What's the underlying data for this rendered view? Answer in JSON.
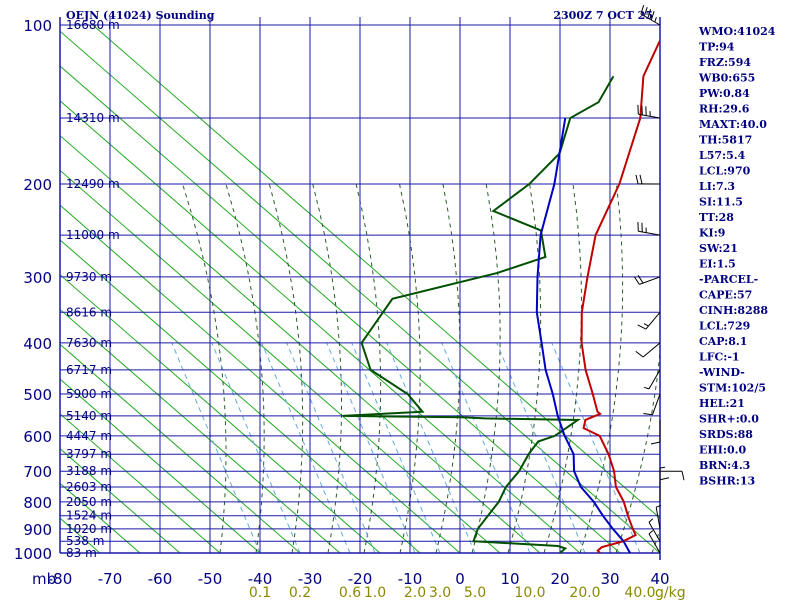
{
  "chart_data": {
    "type": "line",
    "subtype": "skew-t log-p sounding",
    "title": "OEJN (41024) Sounding",
    "valid_time": "2300Z  7 OCT 25",
    "pressure_axis": {
      "unit_label": "mb",
      "ticks": [
        "100",
        "200",
        "300",
        "400",
        "500",
        "600",
        "700",
        "800",
        "900",
        "1000"
      ],
      "range": [
        100,
        1000
      ],
      "scale": "log"
    },
    "temperature_axis": {
      "ticks": [
        "-80",
        "-70",
        "-60",
        "-50",
        "-40",
        "-30",
        "-20",
        "-10",
        "0",
        "10",
        "20",
        "30",
        "40"
      ],
      "range": [
        -80,
        40
      ],
      "skewed": true
    },
    "mixing_ratio_axis": {
      "unit_label": "g/kg",
      "ticks": [
        {
          "label": "0.1",
          "x_at_1000mb": -40
        },
        {
          "label": "0.2",
          "x_at_1000mb": -32
        },
        {
          "label": "0.6",
          "x_at_1000mb": -22
        },
        {
          "label": "1.0",
          "x_at_1000mb": -17
        },
        {
          "label": "2.0",
          "x_at_1000mb": -9
        },
        {
          "label": "3.0",
          "x_at_1000mb": -4
        },
        {
          "label": "5.0",
          "x_at_1000mb": 3
        },
        {
          "label": "10.0",
          "x_at_1000mb": 14
        },
        {
          "label": "20.0",
          "x_at_1000mb": 25
        },
        {
          "label": "40.0",
          "x_at_1000mb": 36
        }
      ]
    },
    "height_labels": [
      {
        "p": 100,
        "label": "16680 m"
      },
      {
        "p": 150,
        "label": "14310 m"
      },
      {
        "p": 200,
        "label": "12490 m"
      },
      {
        "p": 250,
        "label": "11000 m"
      },
      {
        "p": 300,
        "label": "9730 m"
      },
      {
        "p": 350,
        "label": "8616 m"
      },
      {
        "p": 400,
        "label": "7630 m"
      },
      {
        "p": 450,
        "label": "6717 m"
      },
      {
        "p": 500,
        "label": "5900 m"
      },
      {
        "p": 550,
        "label": "5140 m"
      },
      {
        "p": 600,
        "label": "4447 m"
      },
      {
        "p": 650,
        "label": "3797 m"
      },
      {
        "p": 700,
        "label": "3188 m"
      },
      {
        "p": 750,
        "label": "2603 m"
      },
      {
        "p": 800,
        "label": "2050 m"
      },
      {
        "p": 850,
        "label": "1524 m"
      },
      {
        "p": 900,
        "label": "1020 m"
      },
      {
        "p": 950,
        "label": "538 m"
      },
      {
        "p": 1000,
        "label": "83 m"
      }
    ],
    "series": [
      {
        "name": "Temperature",
        "color": "#c00000",
        "points": [
          {
            "p": 100,
            "t": -80
          },
          {
            "p": 125,
            "t": -73
          },
          {
            "p": 150,
            "t": -64
          },
          {
            "p": 200,
            "t": -53
          },
          {
            "p": 250,
            "t": -46
          },
          {
            "p": 300,
            "t": -38
          },
          {
            "p": 350,
            "t": -31
          },
          {
            "p": 400,
            "t": -24
          },
          {
            "p": 450,
            "t": -17
          },
          {
            "p": 500,
            "t": -10
          },
          {
            "p": 540,
            "t": -5
          },
          {
            "p": 545,
            "t": -4
          },
          {
            "p": 560,
            "t": -5.5
          },
          {
            "p": 580,
            "t": -4
          },
          {
            "p": 600,
            "t": 1
          },
          {
            "p": 650,
            "t": 7
          },
          {
            "p": 700,
            "t": 12
          },
          {
            "p": 750,
            "t": 16
          },
          {
            "p": 800,
            "t": 21
          },
          {
            "p": 850,
            "t": 25
          },
          {
            "p": 900,
            "t": 29
          },
          {
            "p": 925,
            "t": 31
          },
          {
            "p": 950,
            "t": 30
          },
          {
            "p": 975,
            "t": 27
          },
          {
            "p": 990,
            "t": 27
          },
          {
            "p": 1000,
            "t": 28
          }
        ]
      },
      {
        "name": "Dew point",
        "color": "#005000",
        "points": [
          {
            "p": 125,
            "t": -79
          },
          {
            "p": 140,
            "t": -76
          },
          {
            "p": 150,
            "t": -78
          },
          {
            "p": 175,
            "t": -72
          },
          {
            "p": 200,
            "t": -71
          },
          {
            "p": 225,
            "t": -72
          },
          {
            "p": 245,
            "t": -58
          },
          {
            "p": 275,
            "t": -51
          },
          {
            "p": 295,
            "t": -57
          },
          {
            "p": 330,
            "t": -72
          },
          {
            "p": 400,
            "t": -68
          },
          {
            "p": 450,
            "t": -60
          },
          {
            "p": 500,
            "t": -47
          },
          {
            "p": 540,
            "t": -40
          },
          {
            "p": 550,
            "t": -55
          },
          {
            "p": 553,
            "t": -31
          },
          {
            "p": 556,
            "t": -26
          },
          {
            "p": 560,
            "t": -7
          },
          {
            "p": 600,
            "t": -8
          },
          {
            "p": 615,
            "t": -10
          },
          {
            "p": 650,
            "t": -9
          },
          {
            "p": 700,
            "t": -7
          },
          {
            "p": 750,
            "t": -6
          },
          {
            "p": 800,
            "t": -4
          },
          {
            "p": 850,
            "t": -3
          },
          {
            "p": 900,
            "t": -2
          },
          {
            "p": 925,
            "t": -1
          },
          {
            "p": 950,
            "t": 0
          },
          {
            "p": 970,
            "t": 18
          },
          {
            "p": 980,
            "t": 20
          },
          {
            "p": 1000,
            "t": 20
          }
        ]
      },
      {
        "name": "Parcel path",
        "color": "#0000c0",
        "points": [
          {
            "p": 150,
            "t": -79
          },
          {
            "p": 200,
            "t": -66
          },
          {
            "p": 250,
            "t": -57
          },
          {
            "p": 300,
            "t": -48
          },
          {
            "p": 350,
            "t": -40
          },
          {
            "p": 400,
            "t": -32
          },
          {
            "p": 450,
            "t": -25
          },
          {
            "p": 500,
            "t": -18
          },
          {
            "p": 550,
            "t": -12
          },
          {
            "p": 600,
            "t": -6
          },
          {
            "p": 650,
            "t": 0
          },
          {
            "p": 700,
            "t": 4
          },
          {
            "p": 750,
            "t": 9
          },
          {
            "p": 800,
            "t": 15
          },
          {
            "p": 850,
            "t": 20
          },
          {
            "p": 900,
            "t": 25
          },
          {
            "p": 950,
            "t": 30
          },
          {
            "p": 1000,
            "t": 34
          }
        ]
      }
    ],
    "indices": [
      "WMO:41024",
      "TP:94",
      "FRZ:594",
      "WB0:655",
      "PW:0.84",
      "RH:29.6",
      "MAXT:40.0",
      "TH:5817",
      "L57:5.4",
      "LCL:970",
      "LI:7.3",
      "SI:11.5",
      "TT:28",
      "KI:9",
      "SW:21",
      "EI:1.5",
      "-PARCEL-",
      "CAPE:57",
      "CINH:8288",
      "LCL:729",
      "CAP:8.1",
      "LFC:-1",
      "-WIND-",
      "STM:102/5",
      "HEL:21",
      "SHR+:0.0",
      "SRDS:88",
      "EHI:0.0",
      "BRN:4.3",
      "BSHR:13"
    ],
    "wind_barbs": [
      {
        "p": 100,
        "dir": 300,
        "kts": 45
      },
      {
        "p": 150,
        "dir": 280,
        "kts": 35
      },
      {
        "p": 200,
        "dir": 270,
        "kts": 20
      },
      {
        "p": 250,
        "dir": 280,
        "kts": 25
      },
      {
        "p": 300,
        "dir": 250,
        "kts": 20
      },
      {
        "p": 350,
        "dir": 220,
        "kts": 15
      },
      {
        "p": 400,
        "dir": 230,
        "kts": 10
      },
      {
        "p": 450,
        "dir": 210,
        "kts": 5
      },
      {
        "p": 500,
        "dir": 200,
        "kts": 10
      },
      {
        "p": 560,
        "dir": 180,
        "kts": 10
      },
      {
        "p": 700,
        "dir": 90,
        "kts": 10
      },
      {
        "p": 760,
        "dir": 0,
        "kts": 5
      },
      {
        "p": 800,
        "dir": 0,
        "kts": 10
      },
      {
        "p": 900,
        "dir": 350,
        "kts": 5
      },
      {
        "p": 950,
        "dir": 330,
        "kts": 5
      },
      {
        "p": 1000,
        "dir": 330,
        "kts": 5
      }
    ]
  }
}
